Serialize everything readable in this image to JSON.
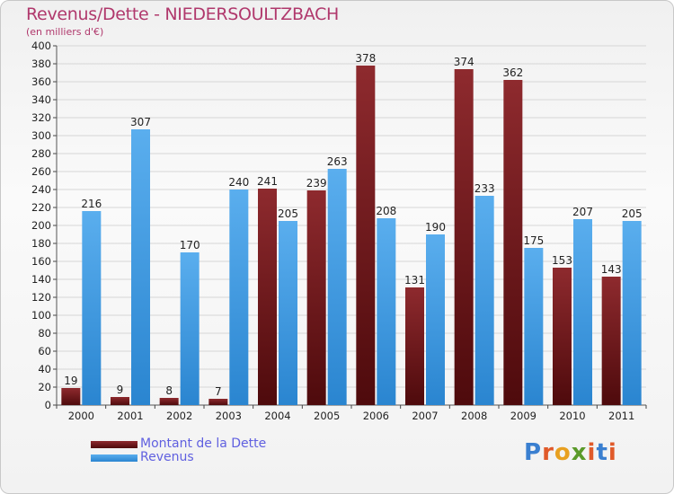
{
  "colors": {
    "dette": "#7a1c1e",
    "revenus": "#3a9be4",
    "title": "#b0386c",
    "legend_text": "#6060e0"
  },
  "logo": {
    "text": "Proxiti",
    "letters": [
      "P",
      "r",
      "o",
      "x",
      "i",
      "t",
      "i"
    ]
  },
  "chart_data": {
    "type": "bar",
    "title": "Revenus/Dette - NIEDERSOULTZBACH",
    "subtitle": "(en milliers d'€)",
    "categories": [
      "2000",
      "2001",
      "2002",
      "2003",
      "2004",
      "2005",
      "2006",
      "2007",
      "2008",
      "2009",
      "2010",
      "2011"
    ],
    "series": [
      {
        "name": "Montant de la Dette",
        "values": [
          19,
          9,
          8,
          7,
          241,
          239,
          378,
          131,
          374,
          362,
          153,
          143
        ]
      },
      {
        "name": "Revenus",
        "values": [
          216,
          307,
          170,
          240,
          205,
          263,
          208,
          190,
          233,
          175,
          207,
          205
        ]
      }
    ],
    "ylim": [
      0,
      400
    ],
    "ytick_step": 20,
    "grid": true,
    "legend": "bottom-left"
  }
}
